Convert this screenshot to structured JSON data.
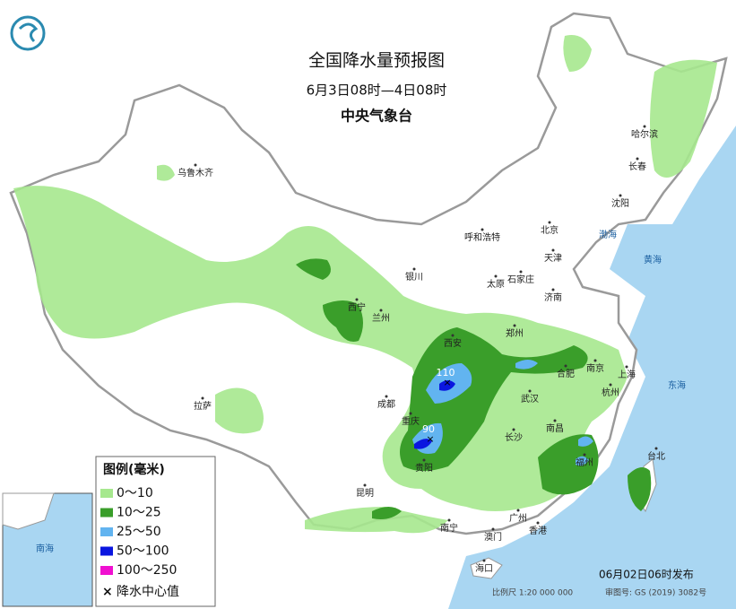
{
  "header": {
    "title": "全国降水量预报图",
    "subtitle": "6月3日08时—4日08时",
    "agency": "中央气象台"
  },
  "legend": {
    "title": "图例(毫米)",
    "items": [
      {
        "label": "0～10",
        "color": "#a6e88e"
      },
      {
        "label": "10～25",
        "color": "#3a9e2a"
      },
      {
        "label": "25～50",
        "color": "#62b4f0"
      },
      {
        "label": "50～100",
        "color": "#0a16e0"
      },
      {
        "label": "100～250",
        "color": "#f010d0"
      }
    ],
    "center_label": "降水中心值"
  },
  "rain_centers": [
    "110",
    "90"
  ],
  "cities": [
    "乌鲁木齐",
    "拉萨",
    "西宁",
    "兰州",
    "银川",
    "呼和浩特",
    "北京",
    "天津",
    "石家庄",
    "太原",
    "济南",
    "郑州",
    "西安",
    "成都",
    "重庆",
    "贵阳",
    "昆明",
    "南宁",
    "广州",
    "澳门",
    "香港",
    "海口",
    "长沙",
    "武汉",
    "南昌",
    "合肥",
    "南京",
    "上海",
    "杭州",
    "福州",
    "台北",
    "哈尔滨",
    "长春",
    "沈阳"
  ],
  "seas": [
    "渤海",
    "黄海",
    "东海",
    "南海"
  ],
  "footer": {
    "issued": "06月02日06时发布",
    "scale": "比例尺 1:20 000 000",
    "review": "审图号: GS (2019) 3082号"
  }
}
